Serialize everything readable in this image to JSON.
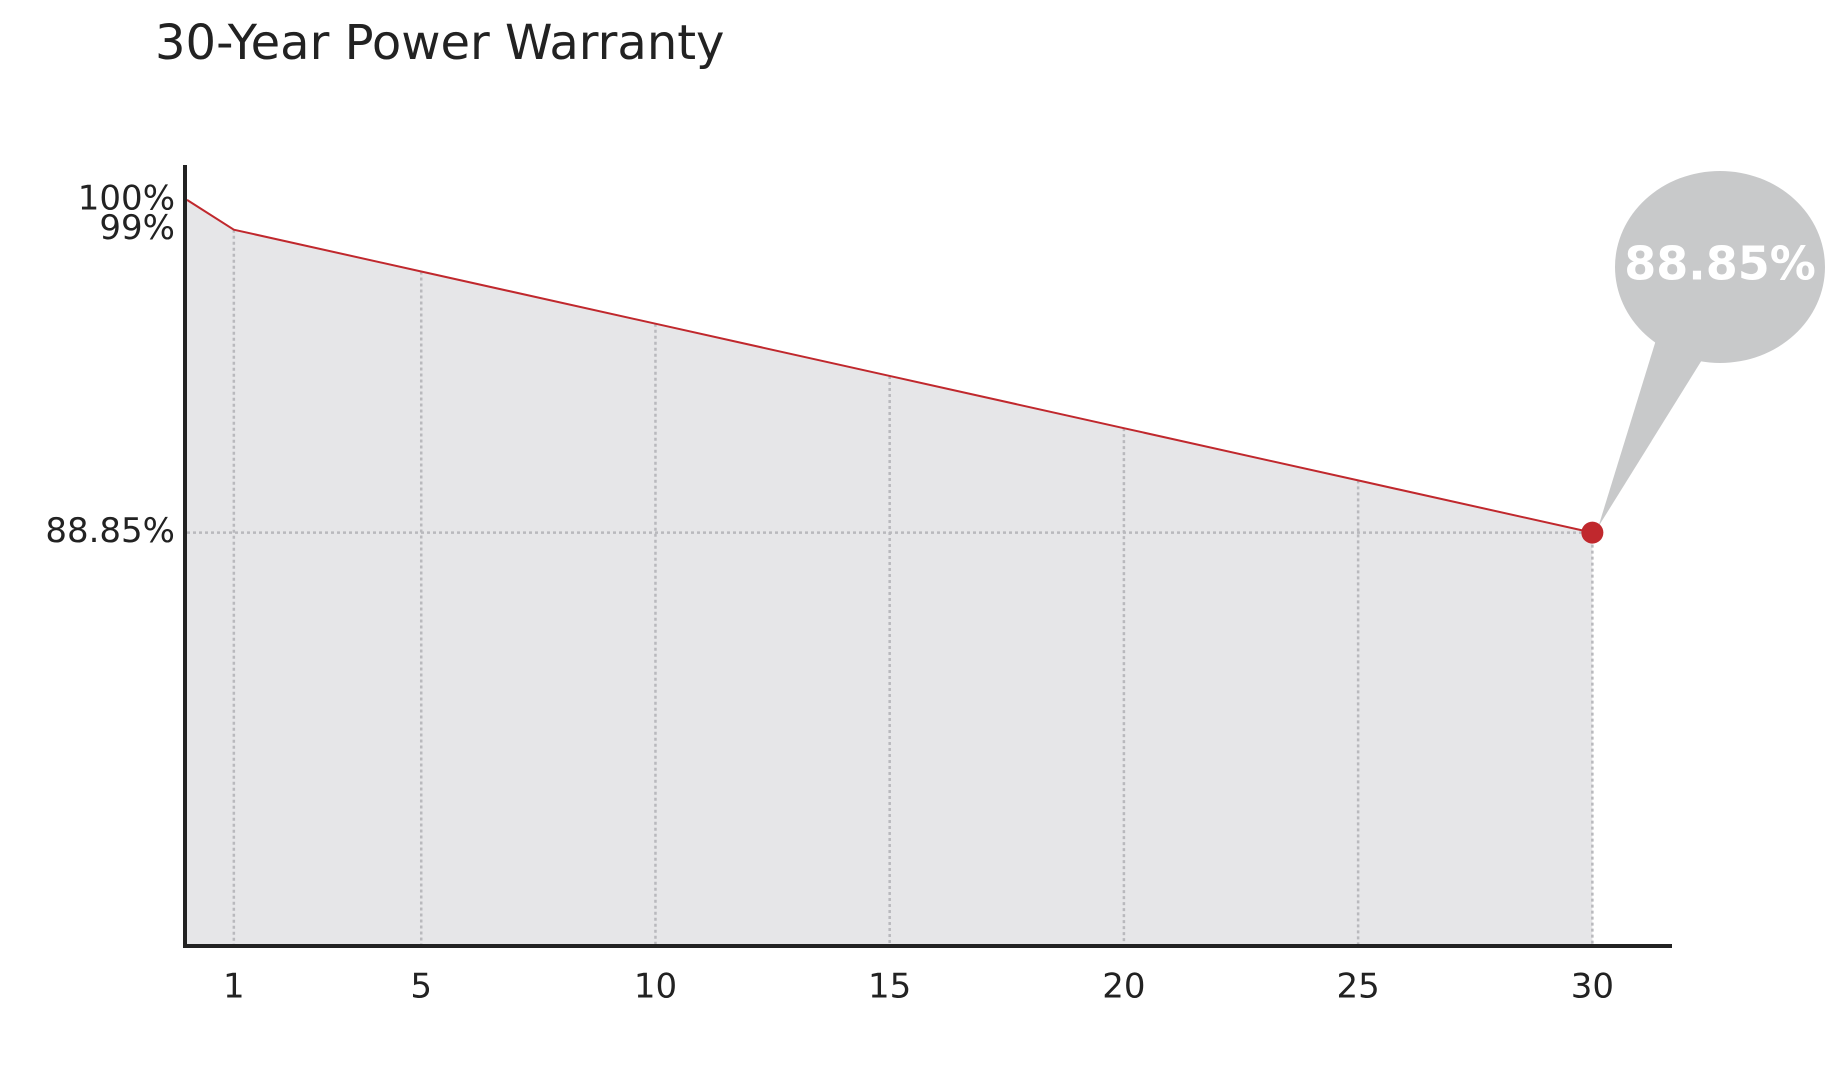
{
  "chart_data": {
    "type": "area",
    "title": "30-Year Power Warranty",
    "x": [
      0,
      1,
      5,
      10,
      15,
      20,
      25,
      30
    ],
    "values": [
      100,
      99,
      97.6,
      95.85,
      94.1,
      92.35,
      90.6,
      88.85
    ],
    "color": "#c0282d",
    "fill_color": "#e6e6e8",
    "xlim": [
      0,
      31.7
    ],
    "xticks": [
      1,
      5,
      10,
      15,
      20,
      25,
      30
    ],
    "ylim": [
      75,
      101
    ],
    "yticks": [
      {
        "value": 100,
        "label": "100%"
      },
      {
        "value": 99,
        "label": "99%"
      },
      {
        "value": 88.85,
        "label": "88.85%"
      }
    ],
    "annotation": "88.85%"
  }
}
